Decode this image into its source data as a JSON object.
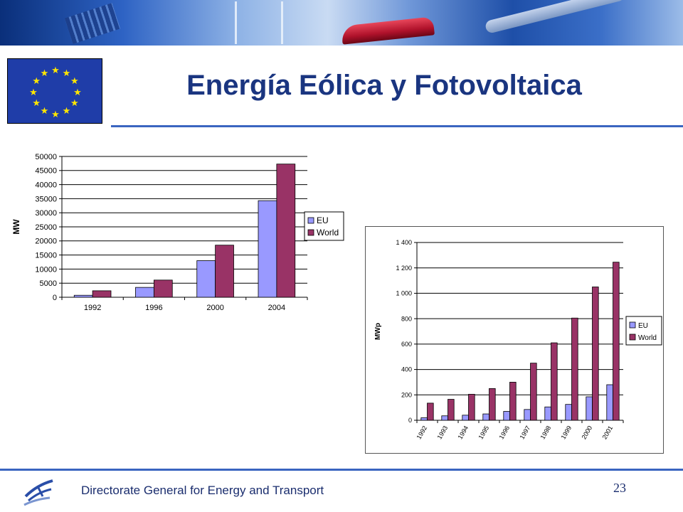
{
  "slide": {
    "title": "Energía Eólica y Fotovoltaica",
    "footer_text": "Directorate General for Energy and Transport",
    "page_number": "23"
  },
  "colors": {
    "title": "#1a3580",
    "eu_series": "#9999ff",
    "world_series": "#993366",
    "rule": "#3a65c0"
  },
  "chart_data": [
    {
      "type": "bar",
      "title": "",
      "ylabel": "MW",
      "xlabel": "",
      "categories": [
        "1992",
        "1996",
        "2000",
        "2004"
      ],
      "series": [
        {
          "name": "EU",
          "values": [
            700,
            3500,
            13000,
            34300
          ]
        },
        {
          "name": "World",
          "values": [
            2300,
            6100,
            18500,
            47300
          ]
        }
      ],
      "ylim": [
        0,
        50000
      ],
      "yticks": [
        0,
        5000,
        10000,
        15000,
        20000,
        25000,
        30000,
        35000,
        40000,
        45000,
        50000
      ],
      "ytick_labels": [
        "0",
        "5000",
        "10000",
        "15000",
        "20000",
        "25000",
        "30000",
        "35000",
        "40000",
        "45000",
        "50000"
      ],
      "grid": true,
      "legend": "right"
    },
    {
      "type": "bar",
      "title": "",
      "ylabel": "MWp",
      "xlabel": "",
      "categories": [
        "1992",
        "1993",
        "1994",
        "1995",
        "1996",
        "1997",
        "1998",
        "1999",
        "2000",
        "2001"
      ],
      "series": [
        {
          "name": "EU",
          "values": [
            20,
            35,
            40,
            50,
            70,
            85,
            105,
            125,
            185,
            280
          ]
        },
        {
          "name": "World",
          "values": [
            135,
            165,
            205,
            250,
            300,
            450,
            610,
            805,
            1050,
            1245
          ]
        }
      ],
      "ylim": [
        0,
        1400
      ],
      "yticks": [
        0,
        200,
        400,
        600,
        800,
        1000,
        1200,
        1400
      ],
      "ytick_labels": [
        "0",
        "200",
        "400",
        "600",
        "800",
        "1 000",
        "1 200",
        "1 400"
      ],
      "grid": true,
      "legend": "right"
    }
  ]
}
